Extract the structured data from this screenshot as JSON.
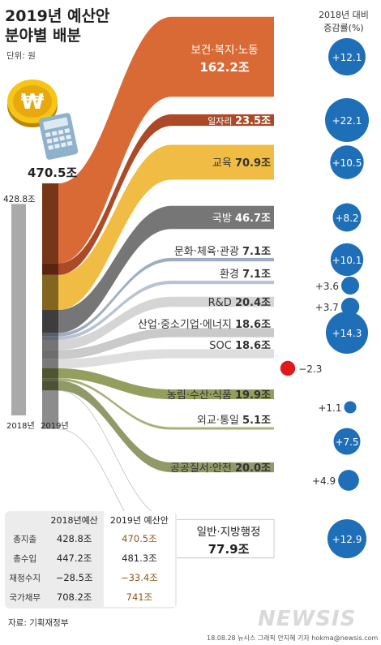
{
  "header": {
    "title_line1": "2019년 예산안",
    "title_line2": "분야별 배분",
    "unit": "단위: 원",
    "change_header_line1": "2018년 대비",
    "change_header_line2": "증감률(%)"
  },
  "totals": {
    "total_2019": "470.5조",
    "total_2018": "428.8조",
    "axis_2018": "2018년",
    "axis_2019": "2019년"
  },
  "colors": {
    "welfare": "#d8622a",
    "jobs": "#a8401c",
    "education": "#f0b83a",
    "defense": "#6f6f6f",
    "culture": "#9aa9bd",
    "environment": "#b4bfcd",
    "rnd": "#d3d3d3",
    "industry": "#c7c7c7",
    "soc": "#dcdcdc",
    "agriculture": "#8e9a55",
    "diplomacy": "#a3ad72",
    "public_order": "#8a9560",
    "general_admin": "#ffffff",
    "increase": "#1f6fb8",
    "decrease": "#e01a1a"
  },
  "chart_data": {
    "type": "sankey",
    "title": "2019년 예산안 분야별 배분",
    "unit": "조원",
    "source_total": 470.5,
    "previous_total": 428.8,
    "categories": [
      {
        "name": "보건·복지·노동",
        "value": 162.2,
        "value_label": "162.2조",
        "change": 12.1,
        "change_label": "+12.1",
        "color_key": "welfare"
      },
      {
        "name": "일자리",
        "value": 23.5,
        "value_label": "23.5조",
        "change": 22.1,
        "change_label": "+22.1",
        "color_key": "jobs"
      },
      {
        "name": "교육",
        "value": 70.9,
        "value_label": "70.9조",
        "change": 10.5,
        "change_label": "+10.5",
        "color_key": "education"
      },
      {
        "name": "국방",
        "value": 46.7,
        "value_label": "46.7조",
        "change": 8.2,
        "change_label": "+8.2",
        "color_key": "defense"
      },
      {
        "name": "문화·체육·관광",
        "value": 7.1,
        "value_label": "7.1조",
        "change": 10.1,
        "change_label": "+10.1",
        "color_key": "culture"
      },
      {
        "name": "환경",
        "value": 7.1,
        "value_label": "7.1조",
        "change": 3.6,
        "change_label": "+3.6",
        "color_key": "environment"
      },
      {
        "name": "R&D",
        "value": 20.4,
        "value_label": "20.4조",
        "change": 3.7,
        "change_label": "+3.7",
        "color_key": "rnd"
      },
      {
        "name": "산업·중소기업·에너지",
        "value": 18.6,
        "value_label": "18.6조",
        "change": 14.3,
        "change_label": "+14.3",
        "color_key": "industry"
      },
      {
        "name": "SOC",
        "value": 18.6,
        "value_label": "18.6조",
        "change": -2.3,
        "change_label": "−2.3",
        "color_key": "soc"
      },
      {
        "name": "농림·수산·식품",
        "value": 19.9,
        "value_label": "19.9조",
        "change": 1.1,
        "change_label": "+1.1",
        "color_key": "agriculture"
      },
      {
        "name": "외교·통일",
        "value": 5.1,
        "value_label": "5.1조",
        "change": 7.5,
        "change_label": "+7.5",
        "color_key": "diplomacy"
      },
      {
        "name": "공공질서·안전",
        "value": 20.0,
        "value_label": "20.0조",
        "change": 4.9,
        "change_label": "+4.9",
        "color_key": "public_order"
      },
      {
        "name": "일반·지방행정",
        "value": 77.9,
        "value_label": "77.9조",
        "change": 12.9,
        "change_label": "+12.9",
        "color_key": "general_admin"
      }
    ]
  },
  "summary_table": {
    "headers": [
      "",
      "2018년예산",
      "2019년 예산안"
    ],
    "rows": [
      {
        "label": "총지출",
        "y2018": "428.8조",
        "y2019": "470.5조"
      },
      {
        "label": "총수입",
        "y2018": "447.2조",
        "y2019": "481.3조"
      },
      {
        "label": "재정수지",
        "y2018": "−28.5조",
        "y2019": "−33.4조"
      },
      {
        "label": "국가채무",
        "y2018": "708.2조",
        "y2019": "741조"
      }
    ]
  },
  "footer": {
    "source": "자료: 기획재정부",
    "credit": "18.08.28 뉴시스 그래픽 안지혜 기자 hokma@newsis.com",
    "watermark": "NEWSIS"
  }
}
